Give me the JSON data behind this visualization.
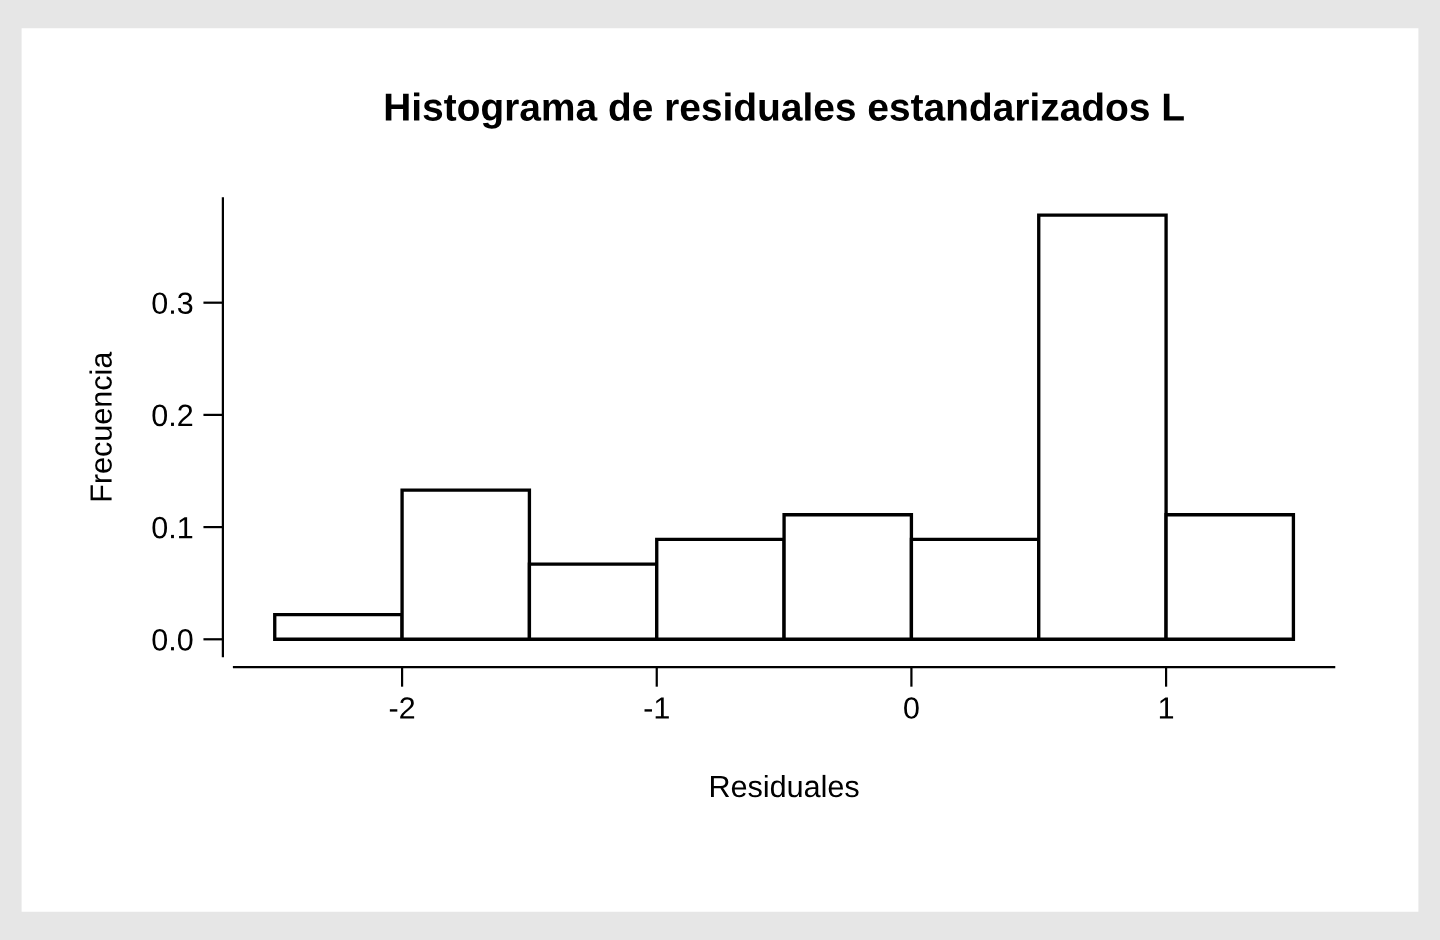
{
  "chart_data": {
    "type": "histogram",
    "title": "Histograma de residuales estandarizados L",
    "xlabel": "Residuales",
    "ylabel": "Frecuencia",
    "bins": [
      -2.5,
      -2.0,
      -1.5,
      -1.0,
      -0.5,
      0.0,
      0.5,
      1.0,
      1.5
    ],
    "values": [
      0.022,
      0.133,
      0.067,
      0.089,
      0.111,
      0.089,
      0.378,
      0.111
    ],
    "color": "#ffffff",
    "xlim": [
      -2.66,
      1.66
    ],
    "ylim": [
      -0.015,
      0.393
    ],
    "xticks": [
      -2,
      -1,
      0,
      1
    ],
    "yticks": [
      {
        "value": 0,
        "label": "0.0"
      },
      {
        "value": 0.1,
        "label": "0.1"
      },
      {
        "value": 0.2,
        "label": "0.2"
      },
      {
        "value": 0.3,
        "label": "0.3"
      }
    ],
    "grid": false
  }
}
